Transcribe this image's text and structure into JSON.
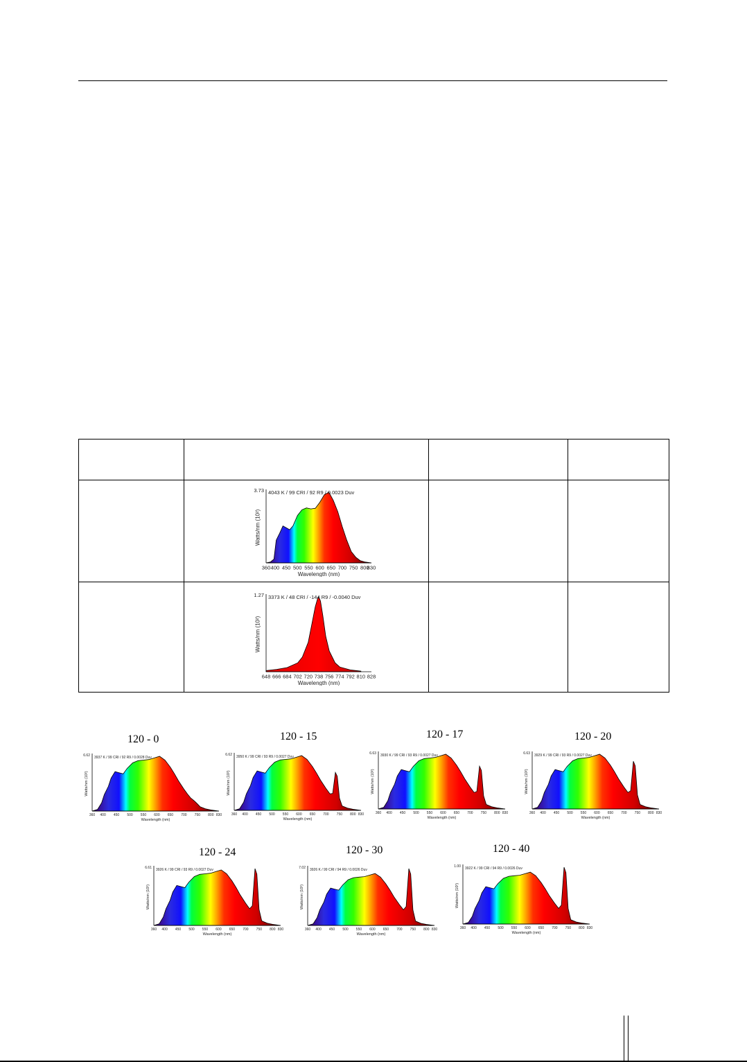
{
  "table": {
    "headers": [
      "",
      "",
      "",
      ""
    ],
    "rows": [
      {
        "col1": "",
        "col3": "",
        "col4": ""
      },
      {
        "col1": "",
        "col3": "",
        "col4": ""
      }
    ]
  },
  "chart_data": [
    {
      "id": "table-chart-1",
      "type": "area",
      "annotation": "4043 K / 99 CRI / 92 R9 / 0.0023 Duv",
      "ylabel": "Watts/nm (10²)",
      "xlabel": "Wavelength (nm)",
      "ytop_label": "3.73",
      "xticks": [
        360,
        400,
        450,
        500,
        550,
        600,
        650,
        700,
        750,
        800,
        830
      ],
      "xlim": [
        360,
        830
      ],
      "ylim": [
        0,
        3.73
      ],
      "x": [
        360,
        380,
        395,
        405,
        420,
        435,
        450,
        465,
        480,
        500,
        520,
        540,
        560,
        580,
        600,
        620,
        640,
        660,
        680,
        700,
        720,
        740,
        760,
        780,
        800,
        830
      ],
      "y": [
        0,
        0.05,
        0.2,
        1.2,
        1.55,
        1.95,
        1.85,
        1.75,
        1.95,
        2.5,
        2.8,
        2.9,
        2.85,
        2.88,
        3.2,
        3.6,
        3.73,
        3.3,
        2.7,
        1.9,
        1.2,
        0.6,
        0.3,
        0.12,
        0.05,
        0
      ]
    },
    {
      "id": "table-chart-2",
      "type": "area",
      "annotation": "3373 K / 48 CRI / -144 R9 / -0.0040 Duv",
      "ylabel": "Watts/nm (10²)",
      "xlabel": "Wavelength (nm)",
      "ytop_label": "1.27",
      "xticks": [
        648,
        666,
        684,
        702,
        720,
        738,
        756,
        774,
        792,
        810,
        828
      ],
      "xlim": [
        648,
        828
      ],
      "ylim": [
        0,
        1.27
      ],
      "x": [
        648,
        666,
        684,
        702,
        710,
        720,
        726,
        732,
        736,
        738,
        741,
        745,
        750,
        756,
        766,
        774,
        792,
        810
      ],
      "y": [
        0.02,
        0.04,
        0.07,
        0.15,
        0.25,
        0.5,
        0.8,
        1.1,
        1.24,
        1.27,
        1.2,
        0.95,
        0.6,
        0.35,
        0.15,
        0.08,
        0.03,
        0.01
      ]
    },
    {
      "id": "mini-120-0",
      "type": "area",
      "title": "120 - 0",
      "annotation": "3937 K / 99 CRI / 92 R9 / 0.0028 Duv",
      "ytop_label": "6.62",
      "peak740": 0.0,
      "ylabel": "Watts/nm (10²)",
      "xlabel": "Wavelength (nm)",
      "xticks": [
        360,
        400,
        450,
        500,
        550,
        600,
        650,
        700,
        750,
        800,
        830
      ]
    },
    {
      "id": "mini-120-15",
      "type": "area",
      "title": "120 - 15",
      "annotation": "3950 K / 99 CRI / 93 R9 / 0.0027 Duv",
      "ytop_label": "6.62",
      "peak740": 0.55,
      "ylabel": "Watts/nm (10²)",
      "xlabel": "Wavelength (nm)",
      "xticks": [
        360,
        400,
        450,
        500,
        550,
        600,
        650,
        700,
        750,
        800,
        830
      ]
    },
    {
      "id": "mini-120-17",
      "type": "area",
      "title": "120 - 17",
      "annotation": "3930 K / 99 CRI / 93 R9 / 0.0027 Duv",
      "ytop_label": "6.63",
      "peak740": 0.65,
      "ylabel": "Watts/nm (10²)",
      "xlabel": "Wavelength (nm)",
      "xticks": [
        360,
        400,
        450,
        500,
        550,
        600,
        650,
        700,
        750,
        800,
        830
      ]
    },
    {
      "id": "mini-120-20",
      "type": "area",
      "title": "120 - 20",
      "annotation": "3929 K / 99 CRI / 93 R9 / 0.0027 Duv",
      "ytop_label": "6.63",
      "peak740": 0.75,
      "ylabel": "Watts/nm (10²)",
      "xlabel": "Wavelength (nm)",
      "xticks": [
        360,
        400,
        450,
        500,
        550,
        600,
        650,
        700,
        750,
        800,
        830
      ]
    },
    {
      "id": "mini-120-24",
      "type": "area",
      "title": "120 - 24",
      "annotation": "3926 K / 99 CRI / 93 R9 / 0.0027 Duv",
      "ytop_label": "6.61",
      "peak740": 0.92,
      "ylabel": "Watts/nm (10²)",
      "xlabel": "Wavelength (nm)",
      "xticks": [
        360,
        400,
        450,
        500,
        550,
        600,
        650,
        700,
        750,
        800,
        830
      ]
    },
    {
      "id": "mini-120-30",
      "type": "area",
      "title": "120 - 30",
      "annotation": "3926 K / 99 CRI / 94 R9 / 0.0026 Duv",
      "ytop_label": "7.02",
      "peak740": 1.0,
      "ylabel": "Watts/nm (10²)",
      "xlabel": "Wavelength (nm)",
      "xticks": [
        360,
        400,
        450,
        500,
        550,
        600,
        650,
        700,
        750,
        800,
        830
      ]
    },
    {
      "id": "mini-120-40",
      "type": "area",
      "title": "120 - 40",
      "annotation": "3922 K / 99 CRI / 94 R9 / 0.0026 Duv",
      "ytop_label": "1.00",
      "peak740": 1.0,
      "ylabel": "Watts/nm (10²)",
      "xlabel": "Wavelength (nm)",
      "xticks": [
        360,
        400,
        450,
        500,
        550,
        600,
        650,
        700,
        750,
        800,
        830
      ]
    }
  ]
}
